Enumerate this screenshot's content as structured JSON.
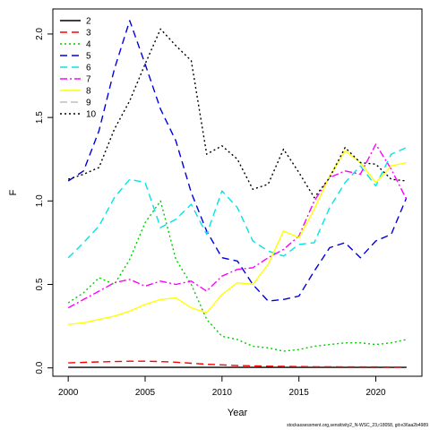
{
  "chart_data": {
    "type": "line",
    "title": "",
    "xlabel": "Year",
    "ylabel": "F",
    "xlim": [
      1999,
      2023
    ],
    "ylim": [
      -0.05,
      2.15
    ],
    "x_ticks": [
      2000,
      2005,
      2010,
      2015,
      2020
    ],
    "y_ticks": [
      0.0,
      0.5,
      1.0,
      1.5,
      2.0
    ],
    "y_tick_labels": [
      "0.0",
      "0.5",
      "1.0",
      "1.5",
      "2.0"
    ],
    "legend_position": "top-left",
    "grid": false,
    "x": [
      2000,
      2001,
      2002,
      2003,
      2004,
      2005,
      2006,
      2007,
      2008,
      2009,
      2010,
      2011,
      2012,
      2013,
      2014,
      2015,
      2016,
      2017,
      2018,
      2019,
      2020,
      2021,
      2022
    ],
    "series": [
      {
        "name": "2",
        "color": "#000000",
        "dash": "none",
        "values": [
          0.003,
          0.003,
          0.003,
          0.003,
          0.003,
          0.003,
          0.003,
          0.003,
          0.003,
          0.003,
          0.003,
          0.003,
          0.003,
          0.003,
          0.003,
          0.003,
          0.003,
          0.003,
          0.003,
          0.003,
          0.003,
          0.003,
          0.003
        ]
      },
      {
        "name": "3",
        "color": "#ff0000",
        "dash": "8,5",
        "values": [
          0.03,
          0.033,
          0.036,
          0.038,
          0.04,
          0.04,
          0.038,
          0.034,
          0.028,
          0.022,
          0.018,
          0.014,
          0.012,
          0.01,
          0.009,
          0.008,
          0.007,
          0.007,
          0.006,
          0.006,
          0.006,
          0.005,
          0.005
        ]
      },
      {
        "name": "4",
        "color": "#00cc00",
        "dash": "2,3",
        "values": [
          0.39,
          0.45,
          0.54,
          0.5,
          0.65,
          0.87,
          1.0,
          0.65,
          0.5,
          0.29,
          0.19,
          0.17,
          0.13,
          0.12,
          0.1,
          0.11,
          0.13,
          0.14,
          0.15,
          0.15,
          0.14,
          0.15,
          0.17
        ]
      },
      {
        "name": "5",
        "color": "#0000dd",
        "dash": "8,5",
        "values": [
          1.12,
          1.18,
          1.42,
          1.79,
          2.08,
          1.82,
          1.55,
          1.36,
          1.05,
          0.82,
          0.66,
          0.64,
          0.5,
          0.4,
          0.41,
          0.43,
          0.58,
          0.72,
          0.75,
          0.66,
          0.76,
          0.8,
          1.02
        ]
      },
      {
        "name": "6",
        "color": "#00e5e5",
        "dash": "8,5",
        "values": [
          0.66,
          0.75,
          0.85,
          1.02,
          1.13,
          1.11,
          0.84,
          0.89,
          0.98,
          0.8,
          1.06,
          0.96,
          0.76,
          0.7,
          0.67,
          0.74,
          0.75,
          0.96,
          1.11,
          1.21,
          1.09,
          1.28,
          1.32
        ]
      },
      {
        "name": "7",
        "color": "#ff00ff",
        "dash": "8,3,2,3",
        "values": [
          0.36,
          0.41,
          0.46,
          0.51,
          0.53,
          0.49,
          0.52,
          0.5,
          0.52,
          0.46,
          0.55,
          0.59,
          0.6,
          0.66,
          0.71,
          0.79,
          1.0,
          1.14,
          1.18,
          1.16,
          1.34,
          1.19,
          1.01
        ]
      },
      {
        "name": "8",
        "color": "#ffff00",
        "dash": "none",
        "values": [
          0.26,
          0.27,
          0.29,
          0.31,
          0.34,
          0.38,
          0.41,
          0.42,
          0.36,
          0.33,
          0.44,
          0.51,
          0.5,
          0.62,
          0.82,
          0.78,
          0.95,
          1.15,
          1.3,
          1.23,
          1.11,
          1.21,
          1.23
        ]
      },
      {
        "name": "9",
        "color": "#bdbdbd",
        "dash": "8,4",
        "values": [
          null,
          null,
          null,
          null,
          null,
          null,
          null,
          null,
          null,
          null,
          null,
          null,
          null,
          null,
          null,
          null,
          null,
          null,
          null,
          null,
          null,
          null,
          null
        ]
      },
      {
        "name": "10",
        "color": "#000000",
        "dash": "2,3",
        "values": [
          1.13,
          1.16,
          1.2,
          1.43,
          1.6,
          1.82,
          2.03,
          1.93,
          1.84,
          1.28,
          1.33,
          1.25,
          1.07,
          1.1,
          1.31,
          1.17,
          1.02,
          1.14,
          1.32,
          1.23,
          1.22,
          1.13,
          1.12
        ]
      }
    ]
  },
  "footer_text": "stockassessment.org,sensitivity2_N-WSC_23,r18058, git:e36aa2b4989"
}
